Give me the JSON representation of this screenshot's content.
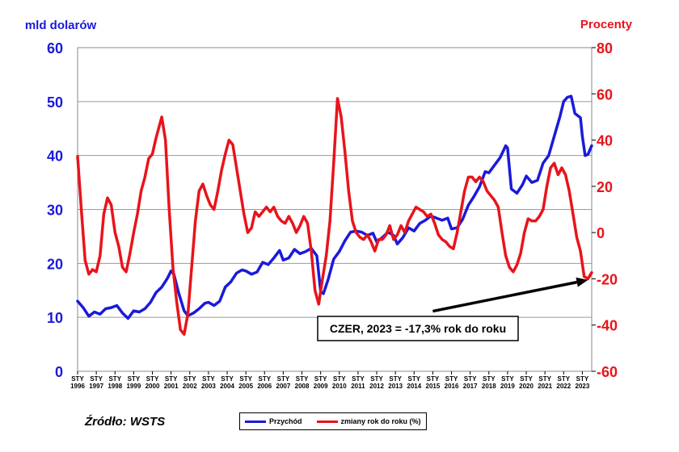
{
  "chart_data": {
    "type": "line",
    "left_axis_title": "mld dolarów",
    "right_axis_title": "Procenty",
    "left_ylim": [
      0,
      60
    ],
    "left_ticks": [
      0,
      10,
      20,
      30,
      40,
      50,
      60
    ],
    "right_ylim": [
      -60,
      80
    ],
    "right_ticks": [
      -60,
      -40,
      -20,
      0,
      20,
      40,
      60,
      80
    ],
    "xlim": [
      1996,
      2023.5
    ],
    "x_ticks": [
      {
        "month": "STY",
        "year": "1996"
      },
      {
        "month": "STY",
        "year": "1997"
      },
      {
        "month": "STY",
        "year": "1998"
      },
      {
        "month": "STY",
        "year": "1999"
      },
      {
        "month": "STY",
        "year": "2000"
      },
      {
        "month": "STY",
        "year": "2001"
      },
      {
        "month": "STY",
        "year": "2002"
      },
      {
        "month": "STY",
        "year": "2003"
      },
      {
        "month": "STY",
        "year": "2004"
      },
      {
        "month": "STY",
        "year": "2005"
      },
      {
        "month": "STY",
        "year": "2006"
      },
      {
        "month": "STY",
        "year": "2007"
      },
      {
        "month": "STY",
        "year": "2008"
      },
      {
        "month": "STY",
        "year": "2009"
      },
      {
        "month": "STY",
        "year": "2010"
      },
      {
        "month": "STY",
        "year": "2011"
      },
      {
        "month": "STY",
        "year": "2012"
      },
      {
        "month": "STY",
        "year": "2013"
      },
      {
        "month": "STY",
        "year": "2014"
      },
      {
        "month": "STY",
        "year": "2015"
      },
      {
        "month": "STY",
        "year": "2016"
      },
      {
        "month": "STY",
        "year": "2017"
      },
      {
        "month": "STY",
        "year": "2018"
      },
      {
        "month": "STY",
        "year": "2019"
      },
      {
        "month": "STY",
        "year": "2020"
      },
      {
        "month": "STY",
        "year": "2021"
      },
      {
        "month": "STY",
        "year": "2022"
      },
      {
        "month": "STY",
        "year": "2023"
      }
    ],
    "grid": "horizontal",
    "series": [
      {
        "name": "Przychód",
        "axis": "left",
        "color": "#1a1adb",
        "points": [
          [
            1996.0,
            13.0
          ],
          [
            1996.3,
            11.8
          ],
          [
            1996.6,
            10.2
          ],
          [
            1996.9,
            11.0
          ],
          [
            1997.2,
            10.6
          ],
          [
            1997.5,
            11.6
          ],
          [
            1997.8,
            11.8
          ],
          [
            1998.1,
            12.2
          ],
          [
            1998.4,
            10.8
          ],
          [
            1998.7,
            9.8
          ],
          [
            1999.0,
            11.2
          ],
          [
            1999.3,
            11.0
          ],
          [
            1999.6,
            11.6
          ],
          [
            1999.9,
            12.8
          ],
          [
            2000.2,
            14.6
          ],
          [
            2000.5,
            15.6
          ],
          [
            2000.8,
            17.2
          ],
          [
            2001.0,
            18.6
          ],
          [
            2001.15,
            18.0
          ],
          [
            2001.4,
            14.6
          ],
          [
            2001.7,
            11.2
          ],
          [
            2001.9,
            10.3
          ],
          [
            2002.2,
            10.8
          ],
          [
            2002.5,
            11.6
          ],
          [
            2002.8,
            12.6
          ],
          [
            2003.0,
            12.8
          ],
          [
            2003.3,
            12.2
          ],
          [
            2003.6,
            13.0
          ],
          [
            2003.9,
            15.6
          ],
          [
            2004.2,
            16.6
          ],
          [
            2004.5,
            18.2
          ],
          [
            2004.8,
            18.8
          ],
          [
            2005.0,
            18.6
          ],
          [
            2005.3,
            18.0
          ],
          [
            2005.6,
            18.4
          ],
          [
            2005.9,
            20.2
          ],
          [
            2006.2,
            19.8
          ],
          [
            2006.5,
            21.0
          ],
          [
            2006.8,
            22.4
          ],
          [
            2007.0,
            20.6
          ],
          [
            2007.3,
            21.0
          ],
          [
            2007.6,
            22.6
          ],
          [
            2007.9,
            21.8
          ],
          [
            2008.2,
            22.2
          ],
          [
            2008.5,
            22.8
          ],
          [
            2008.8,
            21.4
          ],
          [
            2009.0,
            14.8
          ],
          [
            2009.15,
            14.4
          ],
          [
            2009.4,
            17.0
          ],
          [
            2009.7,
            20.8
          ],
          [
            2010.0,
            22.2
          ],
          [
            2010.3,
            24.2
          ],
          [
            2010.6,
            25.8
          ],
          [
            2010.9,
            26.0
          ],
          [
            2011.2,
            25.8
          ],
          [
            2011.5,
            25.2
          ],
          [
            2011.8,
            25.6
          ],
          [
            2012.0,
            24.0
          ],
          [
            2012.3,
            24.8
          ],
          [
            2012.6,
            25.8
          ],
          [
            2012.9,
            25.2
          ],
          [
            2013.1,
            23.6
          ],
          [
            2013.4,
            24.8
          ],
          [
            2013.7,
            26.6
          ],
          [
            2014.0,
            26.0
          ],
          [
            2014.3,
            27.4
          ],
          [
            2014.6,
            28.0
          ],
          [
            2014.9,
            28.8
          ],
          [
            2015.2,
            28.4
          ],
          [
            2015.5,
            28.0
          ],
          [
            2015.8,
            28.4
          ],
          [
            2016.0,
            26.4
          ],
          [
            2016.3,
            26.6
          ],
          [
            2016.6,
            28.2
          ],
          [
            2016.9,
            30.8
          ],
          [
            2017.2,
            32.4
          ],
          [
            2017.5,
            34.2
          ],
          [
            2017.8,
            37.0
          ],
          [
            2018.0,
            36.8
          ],
          [
            2018.3,
            38.2
          ],
          [
            2018.6,
            39.6
          ],
          [
            2018.9,
            41.8
          ],
          [
            2019.0,
            41.4
          ],
          [
            2019.2,
            33.8
          ],
          [
            2019.5,
            33.0
          ],
          [
            2019.8,
            34.6
          ],
          [
            2020.0,
            36.2
          ],
          [
            2020.3,
            35.0
          ],
          [
            2020.6,
            35.4
          ],
          [
            2020.9,
            38.6
          ],
          [
            2021.2,
            40.0
          ],
          [
            2021.5,
            43.6
          ],
          [
            2021.8,
            47.2
          ],
          [
            2022.0,
            50.0
          ],
          [
            2022.2,
            50.8
          ],
          [
            2022.4,
            51.0
          ],
          [
            2022.6,
            47.8
          ],
          [
            2022.9,
            47.0
          ],
          [
            2023.0,
            43.6
          ],
          [
            2023.15,
            40.0
          ],
          [
            2023.3,
            40.2
          ],
          [
            2023.5,
            41.8
          ]
        ]
      },
      {
        "name": "zmiany rok do roku (%)",
        "axis": "right",
        "color": "#e8141b",
        "points": [
          [
            1996.0,
            33.0
          ],
          [
            1996.2,
            10.0
          ],
          [
            1996.4,
            -12.0
          ],
          [
            1996.6,
            -18.0
          ],
          [
            1996.8,
            -16.0
          ],
          [
            1997.0,
            -17.0
          ],
          [
            1997.2,
            -10.0
          ],
          [
            1997.4,
            8.0
          ],
          [
            1997.6,
            15.0
          ],
          [
            1997.8,
            12.0
          ],
          [
            1998.0,
            0.0
          ],
          [
            1998.2,
            -6.0
          ],
          [
            1998.4,
            -15.0
          ],
          [
            1998.6,
            -17.0
          ],
          [
            1998.8,
            -9.0
          ],
          [
            1999.0,
            0.0
          ],
          [
            1999.2,
            8.0
          ],
          [
            1999.4,
            18.0
          ],
          [
            1999.6,
            24.0
          ],
          [
            1999.8,
            32.0
          ],
          [
            2000.0,
            34.0
          ],
          [
            2000.2,
            41.0
          ],
          [
            2000.5,
            50.0
          ],
          [
            2000.7,
            40.0
          ],
          [
            2000.9,
            10.0
          ],
          [
            2001.1,
            -15.0
          ],
          [
            2001.3,
            -30.0
          ],
          [
            2001.5,
            -42.0
          ],
          [
            2001.7,
            -44.0
          ],
          [
            2001.9,
            -35.0
          ],
          [
            2002.1,
            -15.0
          ],
          [
            2002.3,
            5.0
          ],
          [
            2002.5,
            18.0
          ],
          [
            2002.7,
            21.0
          ],
          [
            2002.9,
            16.0
          ],
          [
            2003.1,
            12.0
          ],
          [
            2003.3,
            10.0
          ],
          [
            2003.5,
            18.0
          ],
          [
            2003.7,
            27.0
          ],
          [
            2003.9,
            34.0
          ],
          [
            2004.1,
            40.0
          ],
          [
            2004.3,
            38.0
          ],
          [
            2004.5,
            28.0
          ],
          [
            2004.7,
            18.0
          ],
          [
            2004.9,
            8.0
          ],
          [
            2005.1,
            0.0
          ],
          [
            2005.3,
            2.0
          ],
          [
            2005.5,
            9.0
          ],
          [
            2005.7,
            7.0
          ],
          [
            2005.9,
            9.0
          ],
          [
            2006.1,
            11.0
          ],
          [
            2006.3,
            9.0
          ],
          [
            2006.5,
            11.0
          ],
          [
            2006.7,
            7.0
          ],
          [
            2006.9,
            5.0
          ],
          [
            2007.1,
            4.0
          ],
          [
            2007.3,
            7.0
          ],
          [
            2007.5,
            4.0
          ],
          [
            2007.7,
            0.0
          ],
          [
            2007.9,
            3.0
          ],
          [
            2008.1,
            7.0
          ],
          [
            2008.3,
            4.0
          ],
          [
            2008.5,
            -8.0
          ],
          [
            2008.7,
            -25.0
          ],
          [
            2008.9,
            -31.0
          ],
          [
            2009.1,
            -20.0
          ],
          [
            2009.3,
            -10.0
          ],
          [
            2009.5,
            5.0
          ],
          [
            2009.7,
            30.0
          ],
          [
            2009.9,
            58.0
          ],
          [
            2010.1,
            50.0
          ],
          [
            2010.3,
            35.0
          ],
          [
            2010.5,
            18.0
          ],
          [
            2010.7,
            5.0
          ],
          [
            2010.9,
            0.0
          ],
          [
            2011.1,
            -2.0
          ],
          [
            2011.3,
            -3.0
          ],
          [
            2011.5,
            -1.0
          ],
          [
            2011.7,
            -4.0
          ],
          [
            2011.9,
            -8.0
          ],
          [
            2012.1,
            -3.0
          ],
          [
            2012.3,
            -3.0
          ],
          [
            2012.5,
            -1.0
          ],
          [
            2012.7,
            3.0
          ],
          [
            2012.9,
            -3.0
          ],
          [
            2013.1,
            -1.0
          ],
          [
            2013.3,
            3.0
          ],
          [
            2013.5,
            0.0
          ],
          [
            2013.7,
            5.0
          ],
          [
            2013.9,
            8.0
          ],
          [
            2014.1,
            11.0
          ],
          [
            2014.3,
            10.0
          ],
          [
            2014.5,
            9.0
          ],
          [
            2014.7,
            7.0
          ],
          [
            2014.9,
            8.0
          ],
          [
            2015.1,
            4.0
          ],
          [
            2015.3,
            -1.0
          ],
          [
            2015.5,
            -3.0
          ],
          [
            2015.7,
            -4.0
          ],
          [
            2015.9,
            -6.0
          ],
          [
            2016.1,
            -7.0
          ],
          [
            2016.3,
            0.0
          ],
          [
            2016.5,
            9.0
          ],
          [
            2016.7,
            18.0
          ],
          [
            2016.9,
            24.0
          ],
          [
            2017.1,
            24.0
          ],
          [
            2017.3,
            22.0
          ],
          [
            2017.5,
            24.0
          ],
          [
            2017.7,
            22.0
          ],
          [
            2017.9,
            18.0
          ],
          [
            2018.1,
            16.0
          ],
          [
            2018.3,
            14.0
          ],
          [
            2018.5,
            11.0
          ],
          [
            2018.7,
            0.0
          ],
          [
            2018.9,
            -10.0
          ],
          [
            2019.1,
            -15.0
          ],
          [
            2019.3,
            -17.0
          ],
          [
            2019.5,
            -14.0
          ],
          [
            2019.7,
            -9.0
          ],
          [
            2019.9,
            0.0
          ],
          [
            2020.1,
            6.0
          ],
          [
            2020.3,
            5.0
          ],
          [
            2020.5,
            5.0
          ],
          [
            2020.7,
            7.0
          ],
          [
            2020.9,
            10.0
          ],
          [
            2021.1,
            20.0
          ],
          [
            2021.3,
            28.0
          ],
          [
            2021.5,
            30.0
          ],
          [
            2021.7,
            25.0
          ],
          [
            2021.9,
            28.0
          ],
          [
            2022.1,
            25.0
          ],
          [
            2022.3,
            18.0
          ],
          [
            2022.5,
            8.0
          ],
          [
            2022.7,
            -2.0
          ],
          [
            2022.9,
            -8.0
          ],
          [
            2023.1,
            -19.0
          ],
          [
            2023.3,
            -20.0
          ],
          [
            2023.5,
            -17.3
          ]
        ]
      }
    ],
    "annotation": {
      "text": "CZER, 2023 = -17,3% rok do roku",
      "target": [
        2023.3,
        -20.5
      ],
      "box_anchor": [
        2015.0,
        -34.0
      ]
    },
    "legend": {
      "placement": "bottom-center",
      "entries": [
        "Przychód",
        "zmiany rok do roku (%)"
      ]
    },
    "source": "Źródło: WSTS"
  }
}
